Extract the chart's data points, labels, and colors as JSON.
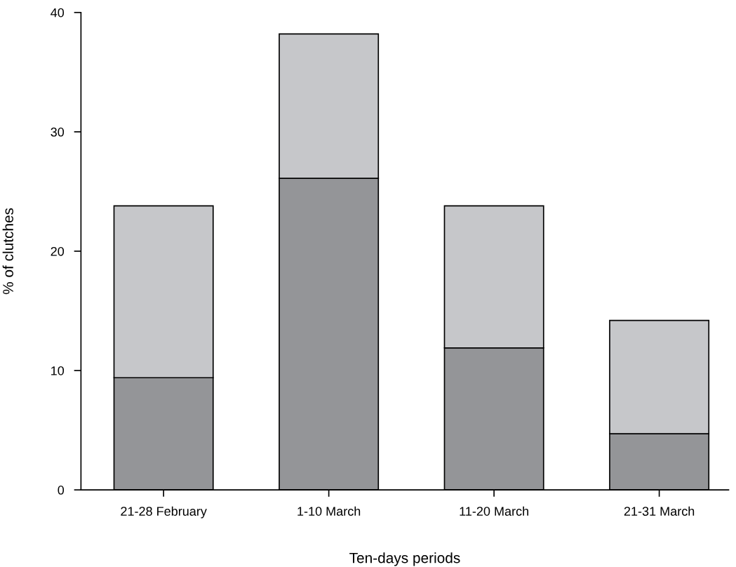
{
  "chart_data": {
    "type": "bar",
    "stacked": true,
    "xlabel": "Ten-days periods",
    "ylabel": "% of clutches",
    "categories": [
      "21-28 February",
      "1-10 March",
      "11-20 March",
      "21-31 March"
    ],
    "series": [
      {
        "color": "#949598",
        "values": [
          9.4,
          26.1,
          11.9,
          4.7
        ]
      },
      {
        "color": "#c6c7ca",
        "values": [
          14.4,
          12.1,
          11.9,
          9.5
        ]
      }
    ],
    "ylim": [
      0,
      40
    ],
    "yticks": [
      0,
      10,
      20,
      30,
      40
    ],
    "grid": false
  }
}
